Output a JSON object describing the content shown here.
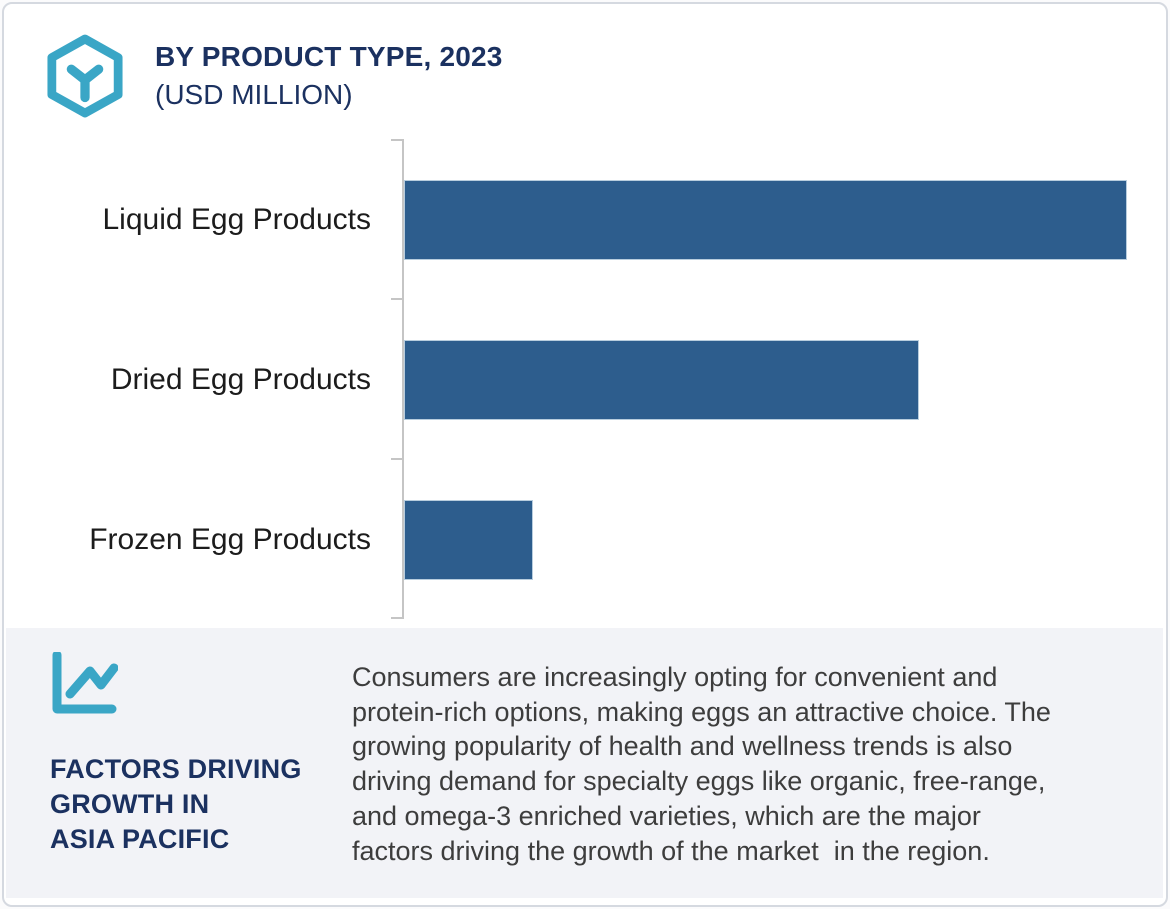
{
  "header": {
    "title": "BY PRODUCT TYPE, 2023",
    "subtitle": "(USD MILLION)"
  },
  "chart_data": {
    "type": "bar",
    "orientation": "horizontal",
    "title": "BY PRODUCT TYPE, 2023",
    "units": "USD MILLION",
    "categories": [
      "Liquid Egg Products",
      "Dried Egg Products",
      "Frozen Egg Products"
    ],
    "values_pct_of_max": [
      100,
      71.2,
      17.8
    ],
    "value_axis_labels_shown": false,
    "grid": false,
    "legend": false,
    "bar_color": "#2d5d8d"
  },
  "panel": {
    "heading_lines": [
      "FACTORS DRIVING",
      "GROWTH IN",
      "ASIA PACIFIC"
    ],
    "paragraph_lines": [
      "Consumers are increasingly opting for convenient and",
      "protein-rich options, making eggs an attractive choice. The",
      "growing popularity of health and wellness trends is also",
      "driving demand for specialty eggs like organic, free-range,",
      "and omega-3 enriched varieties, which are the major",
      "factors driving the growth of the market  in the region."
    ]
  },
  "icons": {
    "brand": "hexagon-cube-icon",
    "panel": "line-chart-icon"
  },
  "colors": {
    "bar": "#2d5d8d",
    "teal": "#3aa6c6",
    "navy": "#1b3160",
    "panel_bg": "#f2f3f7",
    "axis": "#c5c5c5",
    "label_text": "#1c1c1c",
    "paragraph_text": "#3d3d3d",
    "border": "#d5d9e0"
  }
}
